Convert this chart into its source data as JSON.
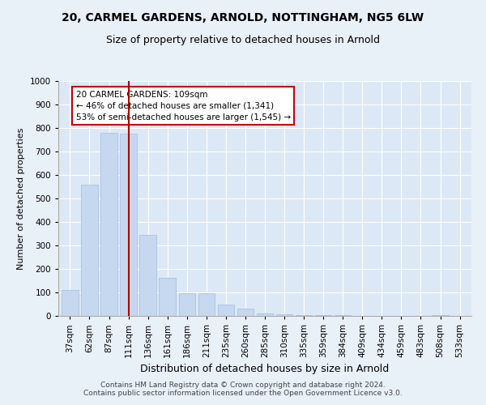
{
  "title": "20, CARMEL GARDENS, ARNOLD, NOTTINGHAM, NG5 6LW",
  "subtitle": "Size of property relative to detached houses in Arnold",
  "xlabel": "Distribution of detached houses by size in Arnold",
  "ylabel": "Number of detached properties",
  "categories": [
    "37sqm",
    "62sqm",
    "87sqm",
    "111sqm",
    "136sqm",
    "161sqm",
    "186sqm",
    "211sqm",
    "235sqm",
    "260sqm",
    "285sqm",
    "310sqm",
    "335sqm",
    "359sqm",
    "384sqm",
    "409sqm",
    "434sqm",
    "459sqm",
    "483sqm",
    "508sqm",
    "533sqm"
  ],
  "values": [
    110,
    557,
    778,
    775,
    345,
    163,
    95,
    95,
    50,
    30,
    10,
    8,
    5,
    3,
    2,
    1,
    0,
    0,
    0,
    2,
    0
  ],
  "bar_color": "#c5d8f0",
  "bar_edge_color": "#a8c4e0",
  "vline_x_index": 3,
  "vline_color": "#aa0000",
  "annotation_text": "20 CARMEL GARDENS: 109sqm\n← 46% of detached houses are smaller (1,341)\n53% of semi-detached houses are larger (1,545) →",
  "annotation_box_color": "#ffffff",
  "annotation_box_edge": "#cc0000",
  "ylim": [
    0,
    1000
  ],
  "yticks": [
    0,
    100,
    200,
    300,
    400,
    500,
    600,
    700,
    800,
    900,
    1000
  ],
  "bg_color": "#e8f0f8",
  "plot_bg_color": "#dce8f5",
  "footer": "Contains HM Land Registry data © Crown copyright and database right 2024.\nContains public sector information licensed under the Open Government Licence v3.0.",
  "title_fontsize": 10,
  "subtitle_fontsize": 9,
  "annot_fontsize": 7.5,
  "ylabel_fontsize": 8,
  "xlabel_fontsize": 9,
  "tick_fontsize": 7.5,
  "footer_fontsize": 6.5
}
